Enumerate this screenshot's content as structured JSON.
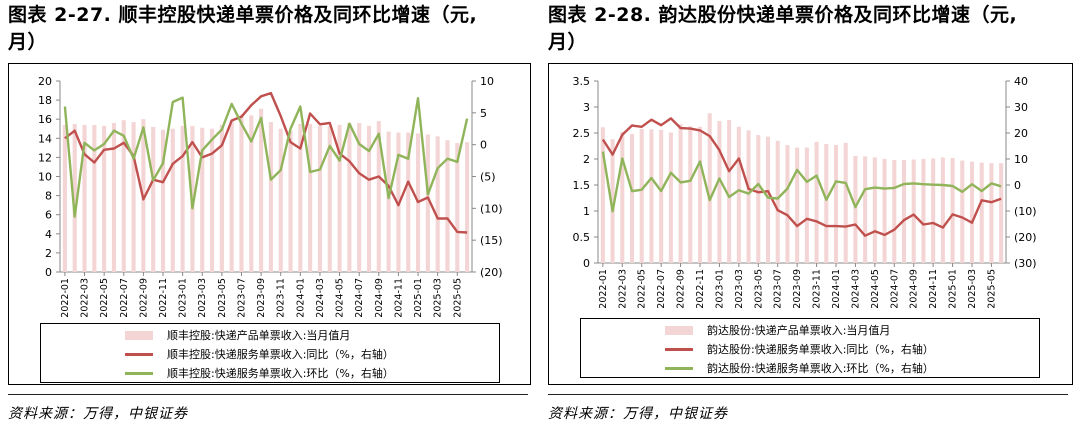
{
  "panels": [
    {
      "title_line1": "图表 2-27. 顺丰控股快递单票价格及同环比增速（元,",
      "title_line2": "月）",
      "source": "资料来源：万得，中银证券",
      "legend": [
        "顺丰控股:快递产品单票收入:当月值月",
        "顺丰控股:快递服务单票收入:同比（%，右轴）",
        "顺丰控股:快递服务单票收入:环比（%，右轴）"
      ]
    },
    {
      "title_line1": "图表 2-28. 韵达股份快递单票价格及同环比增速（元,",
      "title_line2": "月）",
      "source": "资料来源：万得，中银证券",
      "legend": [
        "韵达股份:快递产品单票收入:当月值月",
        "韵达股份:快递服务单票收入:同比（%，右轴）",
        "韵达股份:快递服务单票收入:环比（%，右轴）"
      ]
    }
  ],
  "chart_data": [
    {
      "type": "bar",
      "categories": [
        "2022-01",
        "2022-02",
        "2022-03",
        "2022-04",
        "2022-05",
        "2022-06",
        "2022-07",
        "2022-08",
        "2022-09",
        "2022-10",
        "2022-11",
        "2022-12",
        "2023-01",
        "2023-02",
        "2023-03",
        "2023-04",
        "2023-05",
        "2023-06",
        "2023-07",
        "2023-08",
        "2023-09",
        "2023-10",
        "2023-11",
        "2023-12",
        "2024-01",
        "2024-02",
        "2024-03",
        "2024-04",
        "2024-05",
        "2024-06",
        "2024-07",
        "2024-08",
        "2024-09",
        "2024-10",
        "2024-11",
        "2024-12",
        "2025-01",
        "2025-02",
        "2025-03",
        "2025-04",
        "2025-05",
        "2025-06"
      ],
      "tick_labels": [
        "2022-01",
        "2022-03",
        "2022-05",
        "2022-07",
        "2022-09",
        "2022-11",
        "2023-01",
        "2023-03",
        "2023-05",
        "2023-07",
        "2023-09",
        "2023-11",
        "2024-01",
        "2024-03",
        "2024-05",
        "2024-07",
        "2024-09",
        "2024-11",
        "2025-01",
        "2025-03",
        "2025-05"
      ],
      "series": [
        {
          "name": "顺丰控股:快递产品单票收入:当月值月",
          "axis": "left",
          "kind": "bar",
          "color": "#f4d5d5",
          "values": [
            15.4,
            15.5,
            15.4,
            15.4,
            15.3,
            15.6,
            15.9,
            15.7,
            16.0,
            15.2,
            14.9,
            15.0,
            15.3,
            15.3,
            15.1,
            15.0,
            15.4,
            15.8,
            16.5,
            16.4,
            17.1,
            15.7,
            15.0,
            14.8,
            15.5,
            15.5,
            15.3,
            15.3,
            15.4,
            15.6,
            15.6,
            15.3,
            15.8,
            14.7,
            14.6,
            14.6,
            14.5,
            14.4,
            14.2,
            13.8,
            13.5,
            13.6
          ]
        },
        {
          "name": "顺丰控股:快递服务单票收入:同比（%，右轴）",
          "axis": "right",
          "kind": "line",
          "color": "#c0504d",
          "values": [
            1.0,
            2.2,
            -1.5,
            -2.8,
            -0.8,
            -0.6,
            0.3,
            -1.8,
            -8.6,
            -5.5,
            -5.9,
            -3.0,
            -1.8,
            0.4,
            -2.0,
            -1.4,
            -0.1,
            3.8,
            4.4,
            6.2,
            7.6,
            8.1,
            4.5,
            0.4,
            -0.6,
            4.9,
            3.2,
            3.4,
            -1.4,
            -2.6,
            -4.5,
            -5.5,
            -5.0,
            -6.5,
            -9.5,
            -5.8,
            -9.0,
            -8.3,
            -11.6,
            -11.6,
            -13.7,
            -13.8
          ]
        },
        {
          "name": "顺丰控股:快递服务单票收入:环比（%，右轴）",
          "axis": "right",
          "kind": "line",
          "color": "#8fb45a",
          "values": [
            6.0,
            -11.3,
            0.3,
            -0.9,
            0.1,
            2.2,
            1.4,
            -2.2,
            2.7,
            -5.6,
            -2.9,
            6.7,
            7.4,
            -10.0,
            -0.9,
            0.8,
            2.4,
            6.4,
            3.3,
            0.5,
            4.2,
            -5.5,
            -4.0,
            2.5,
            6.0,
            -4.3,
            -3.9,
            -0.2,
            -2.5,
            3.3,
            0.1,
            -1.0,
            1.7,
            -8.4,
            -1.6,
            -2.2,
            7.3,
            -7.8,
            -3.7,
            -2.2,
            -2.7,
            4.1
          ]
        }
      ],
      "left_axis": {
        "min": 0,
        "max": 20,
        "step": 2,
        "labels": [
          "0",
          "2",
          "4",
          "6",
          "8",
          "10",
          "12",
          "14",
          "16",
          "18",
          "20"
        ]
      },
      "right_axis": {
        "min": -20,
        "max": 10,
        "step": 5,
        "labels": [
          "(20)",
          "(15)",
          "(10)",
          "(5)",
          "0",
          "5",
          "10"
        ]
      }
    },
    {
      "type": "bar",
      "categories": [
        "2022-01",
        "2022-02",
        "2022-03",
        "2022-04",
        "2022-05",
        "2022-06",
        "2022-07",
        "2022-08",
        "2022-09",
        "2022-10",
        "2022-11",
        "2022-12",
        "2023-01",
        "2023-02",
        "2023-03",
        "2023-04",
        "2023-05",
        "2023-06",
        "2023-07",
        "2023-08",
        "2023-09",
        "2023-10",
        "2023-11",
        "2023-12",
        "2024-01",
        "2024-02",
        "2024-03",
        "2024-04",
        "2024-05",
        "2024-06",
        "2024-07",
        "2024-08",
        "2024-09",
        "2024-10",
        "2024-11",
        "2024-12",
        "2025-01",
        "2025-02",
        "2025-03",
        "2025-04",
        "2025-05",
        "2025-06"
      ],
      "tick_labels": [
        "2022-01",
        "2022-03",
        "2022-05",
        "2022-07",
        "2022-09",
        "2022-11",
        "2023-01",
        "2023-03",
        "2023-05",
        "2023-07",
        "2023-09",
        "2023-11",
        "2024-01",
        "2024-03",
        "2024-05",
        "2024-07",
        "2024-09",
        "2024-11",
        "2025-01",
        "2025-03",
        "2025-05"
      ],
      "series": [
        {
          "name": "韵达股份:快递产品单票收入:当月值月",
          "axis": "left",
          "kind": "bar",
          "color": "#f4d5d5",
          "values": [
            2.61,
            2.38,
            2.52,
            2.48,
            2.58,
            2.57,
            2.56,
            2.51,
            2.67,
            2.63,
            2.62,
            2.88,
            2.73,
            2.75,
            2.62,
            2.55,
            2.46,
            2.43,
            2.35,
            2.27,
            2.22,
            2.22,
            2.33,
            2.29,
            2.27,
            2.31,
            2.06,
            2.05,
            2.03,
            2.0,
            1.98,
            1.98,
            1.99,
            2.0,
            2.01,
            2.03,
            2.02,
            1.97,
            1.95,
            1.93,
            1.92,
            1.92
          ]
        },
        {
          "name": "韵达股份:快递服务单票收入:同比（%，右轴）",
          "axis": "right",
          "kind": "line",
          "color": "#c0504d",
          "values": [
            17.5,
            11.7,
            19.3,
            22.9,
            22.4,
            25.1,
            23.0,
            25.6,
            21.9,
            21.7,
            21.0,
            18.8,
            13.4,
            5.3,
            10.2,
            -1.5,
            -2.8,
            -2.4,
            -9.7,
            -11.6,
            -15.8,
            -13.0,
            -14.0,
            -15.8,
            -15.8,
            -16.0,
            -15.2,
            -19.5,
            -17.8,
            -19.2,
            -17.2,
            -13.5,
            -11.4,
            -15.2,
            -14.6,
            -16.4,
            -11.3,
            -12.5,
            -14.5,
            -5.9,
            -6.6,
            -5.3
          ]
        },
        {
          "name": "韵达股份:快递服务单票收入:环比（%，右轴）",
          "axis": "right",
          "kind": "line",
          "color": "#8fb45a",
          "values": [
            12.8,
            -10.1,
            10.2,
            -2.4,
            -1.8,
            2.7,
            -2.3,
            4.7,
            1.0,
            1.6,
            9.0,
            -5.8,
            2.5,
            -4.6,
            -2.0,
            -3.3,
            0.4,
            -4.9,
            -5.2,
            -1.4,
            5.8,
            1.2,
            3.6,
            -5.7,
            1.4,
            0.8,
            -8.5,
            -1.6,
            -1.0,
            -1.4,
            -1.1,
            0.4,
            0.6,
            0.3,
            0.1,
            0.0,
            -0.4,
            -2.6,
            0.3,
            -2.3,
            0.6,
            -0.5
          ]
        }
      ],
      "left_axis": {
        "min": 0,
        "max": 3.5,
        "step": 0.5,
        "labels": [
          "0",
          "0.5",
          "1",
          "1.5",
          "2",
          "2.5",
          "3",
          "3.5"
        ]
      },
      "right_axis": {
        "min": -30,
        "max": 40,
        "step": 10,
        "labels": [
          "(30)",
          "(20)",
          "(10)",
          "0",
          "10",
          "20",
          "30",
          "40"
        ]
      }
    }
  ]
}
